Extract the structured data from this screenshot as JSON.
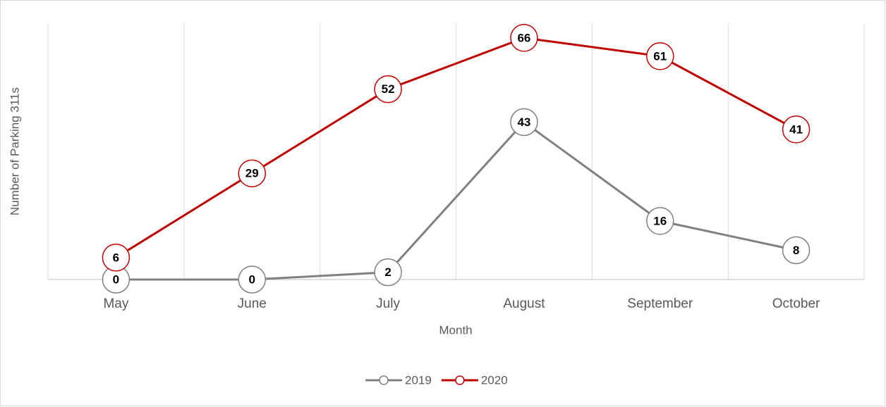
{
  "chart_data": {
    "type": "line",
    "x_label": "Month",
    "y_label": "Number of Parking 311s",
    "categories": [
      "May",
      "June",
      "July",
      "August",
      "September",
      "October"
    ],
    "series": [
      {
        "name": "2019",
        "color": "#808080",
        "values": [
          0,
          0,
          2,
          43,
          16,
          8
        ]
      },
      {
        "name": "2020",
        "color": "#c00000",
        "values": [
          6,
          29,
          52,
          66,
          61,
          41
        ]
      }
    ],
    "ylim": [
      0,
      70
    ],
    "grid": true,
    "legend": "bottom"
  }
}
